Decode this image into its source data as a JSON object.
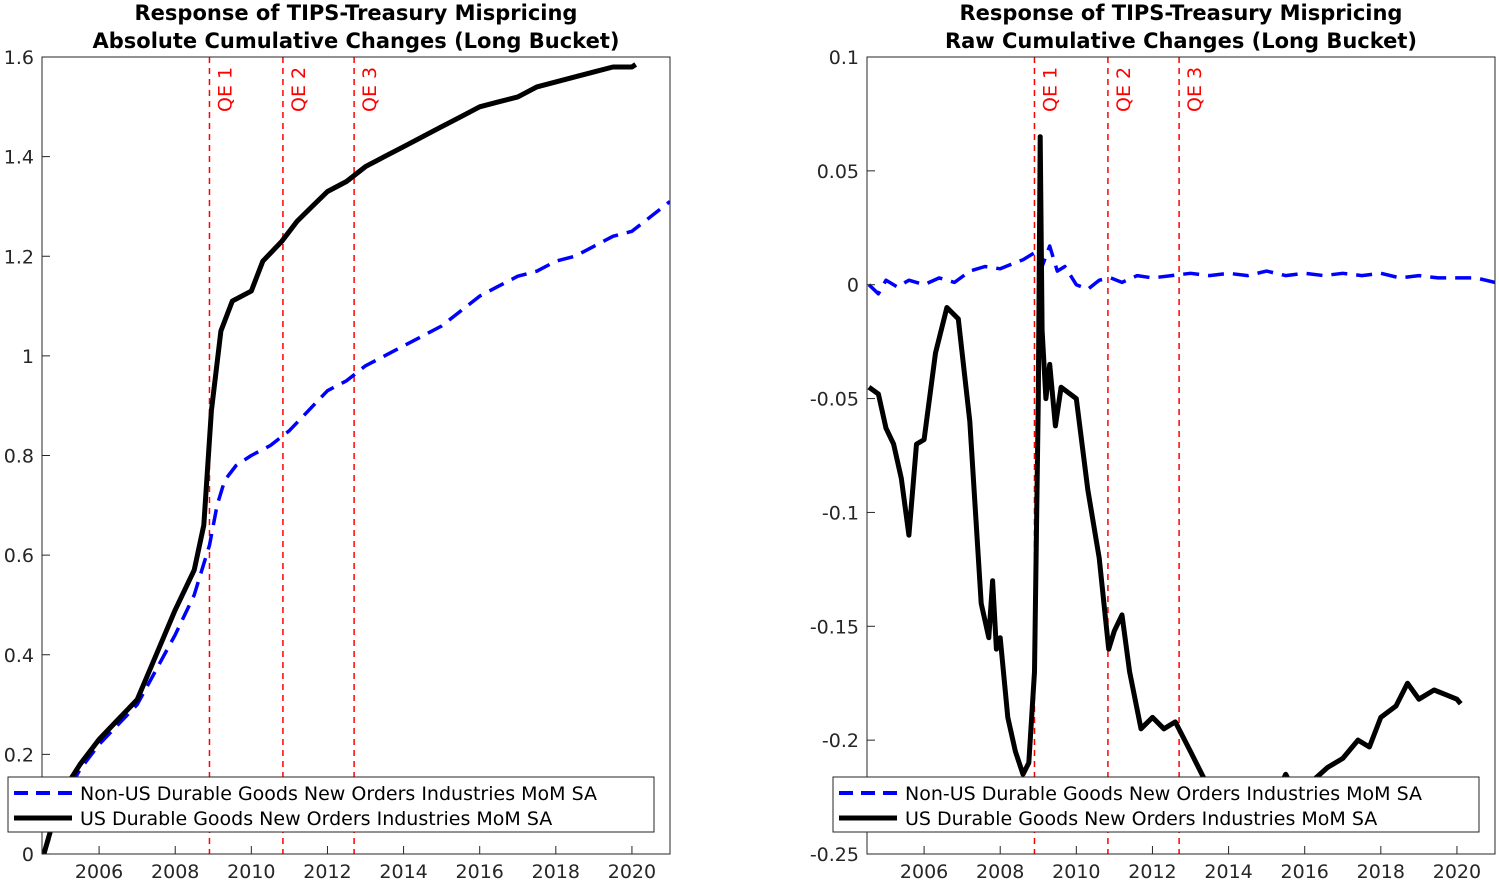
{
  "chart_data": [
    {
      "type": "line",
      "title": "Response of TIPS-Treasury Mispricing",
      "subtitle": "Absolute Cumulative Changes (Long Bucket)",
      "xlabel": "",
      "ylabel": "",
      "xlim": [
        2004.5,
        2021.0
      ],
      "ylim": [
        0,
        1.6
      ],
      "xticks": [
        2006,
        2008,
        2010,
        2012,
        2014,
        2016,
        2018,
        2020
      ],
      "yticks": [
        0,
        0.2,
        0.4,
        0.6,
        0.8,
        1,
        1.2,
        1.4,
        1.6
      ],
      "ytick_labels": [
        "0",
        "0.2",
        "0.4",
        "0.6",
        "0.8",
        "1",
        "1.2",
        "1.4",
        "1.6"
      ],
      "grid": false,
      "legend_position": "bottom",
      "vlines": [
        {
          "x": 2008.9,
          "label": "QE 1"
        },
        {
          "x": 2010.83,
          "label": "QE 2"
        },
        {
          "x": 2012.7,
          "label": "QE 3"
        }
      ],
      "series": [
        {
          "name": "Non-US Durable Goods New Orders Industries MoM SA",
          "color": "#0000ff",
          "style": "dashed",
          "x": [
            2004.55,
            2005.0,
            2005.5,
            2006.0,
            2006.5,
            2007.0,
            2007.5,
            2008.0,
            2008.5,
            2008.9,
            2009.1,
            2009.3,
            2009.6,
            2010.0,
            2010.5,
            2011.0,
            2011.5,
            2012.0,
            2012.5,
            2013.0,
            2013.5,
            2014.0,
            2014.5,
            2015.0,
            2015.5,
            2016.0,
            2016.5,
            2017.0,
            2017.5,
            2018.0,
            2018.5,
            2019.0,
            2019.5,
            2020.0,
            2020.5,
            2021.0
          ],
          "y": [
            0.0,
            0.1,
            0.17,
            0.22,
            0.26,
            0.3,
            0.37,
            0.44,
            0.52,
            0.62,
            0.7,
            0.75,
            0.78,
            0.8,
            0.82,
            0.85,
            0.89,
            0.93,
            0.95,
            0.98,
            1.0,
            1.02,
            1.04,
            1.06,
            1.09,
            1.12,
            1.14,
            1.16,
            1.17,
            1.19,
            1.2,
            1.22,
            1.24,
            1.25,
            1.28,
            1.31
          ]
        },
        {
          "name": "US Durable Goods New Orders Industries MoM SA",
          "color": "#000000",
          "style": "solid",
          "x": [
            2004.55,
            2005.0,
            2005.5,
            2006.0,
            2006.5,
            2007.0,
            2007.5,
            2008.0,
            2008.5,
            2008.75,
            2008.95,
            2009.2,
            2009.5,
            2010.0,
            2010.3,
            2010.8,
            2011.2,
            2011.6,
            2012.0,
            2012.5,
            2013.0,
            2013.5,
            2014.0,
            2014.5,
            2015.0,
            2015.5,
            2016.0,
            2016.5,
            2017.0,
            2017.5,
            2018.0,
            2018.5,
            2019.0,
            2019.5,
            2020.0,
            2020.1
          ],
          "y": [
            0.0,
            0.12,
            0.18,
            0.23,
            0.27,
            0.31,
            0.4,
            0.49,
            0.57,
            0.66,
            0.89,
            1.05,
            1.11,
            1.13,
            1.19,
            1.23,
            1.27,
            1.3,
            1.33,
            1.35,
            1.38,
            1.4,
            1.42,
            1.44,
            1.46,
            1.48,
            1.5,
            1.51,
            1.52,
            1.54,
            1.55,
            1.56,
            1.57,
            1.58,
            1.58,
            1.585
          ]
        }
      ]
    },
    {
      "type": "line",
      "title": "Response of TIPS-Treasury Mispricing",
      "subtitle": "Raw Cumulative Changes (Long Bucket)",
      "xlabel": "",
      "ylabel": "",
      "xlim": [
        2004.5,
        2021.0
      ],
      "ylim": [
        -0.25,
        0.1
      ],
      "xticks": [
        2006,
        2008,
        2010,
        2012,
        2014,
        2016,
        2018,
        2020
      ],
      "yticks": [
        -0.25,
        -0.2,
        -0.15,
        -0.1,
        -0.05,
        0,
        0.05,
        0.1
      ],
      "ytick_labels": [
        "-0.25",
        "-0.2",
        "-0.15",
        "-0.1",
        "-0.05",
        "0",
        "0.05",
        "0.1"
      ],
      "grid": false,
      "legend_position": "bottom",
      "vlines": [
        {
          "x": 2008.9,
          "label": "QE 1"
        },
        {
          "x": 2010.83,
          "label": "QE 2"
        },
        {
          "x": 2012.7,
          "label": "QE 3"
        }
      ],
      "series": [
        {
          "name": "Non-US Durable Goods New Orders Industries MoM SA",
          "color": "#0000ff",
          "style": "dashed",
          "x": [
            2004.55,
            2004.8,
            2005.0,
            2005.3,
            2005.6,
            2006.0,
            2006.4,
            2006.8,
            2007.2,
            2007.6,
            2008.0,
            2008.3,
            2008.6,
            2008.9,
            2009.1,
            2009.3,
            2009.5,
            2009.7,
            2010.0,
            2010.3,
            2010.6,
            2010.9,
            2011.2,
            2011.6,
            2012.0,
            2012.5,
            2013.0,
            2013.5,
            2014.0,
            2014.5,
            2015.0,
            2015.5,
            2016.0,
            2016.5,
            2017.0,
            2017.5,
            2018.0,
            2018.5,
            2019.0,
            2019.5,
            2020.0,
            2020.5,
            2021.0
          ],
          "y": [
            0.0,
            -0.004,
            0.002,
            -0.001,
            0.002,
            0.0,
            0.003,
            0.001,
            0.006,
            0.008,
            0.007,
            0.009,
            0.011,
            0.014,
            0.008,
            0.017,
            0.006,
            0.008,
            0.0,
            -0.002,
            0.002,
            0.003,
            0.001,
            0.004,
            0.003,
            0.004,
            0.005,
            0.004,
            0.005,
            0.004,
            0.006,
            0.004,
            0.005,
            0.004,
            0.005,
            0.004,
            0.005,
            0.003,
            0.004,
            0.003,
            0.003,
            0.003,
            0.001
          ]
        },
        {
          "name": "US Durable Goods New Orders Industries MoM SA",
          "color": "#000000",
          "style": "solid",
          "x": [
            2004.55,
            2004.8,
            2005.0,
            2005.2,
            2005.4,
            2005.6,
            2005.8,
            2006.0,
            2006.3,
            2006.6,
            2006.9,
            2007.2,
            2007.5,
            2007.7,
            2007.8,
            2007.9,
            2008.0,
            2008.2,
            2008.4,
            2008.6,
            2008.75,
            2008.9,
            2009.0,
            2009.05,
            2009.1,
            2009.2,
            2009.3,
            2009.45,
            2009.6,
            2010.0,
            2010.3,
            2010.6,
            2010.85,
            2011.0,
            2011.2,
            2011.4,
            2011.7,
            2012.0,
            2012.3,
            2012.6,
            2013.0,
            2013.3,
            2013.6,
            2014.0,
            2014.4,
            2014.8,
            2015.2,
            2015.5,
            2015.8,
            2016.2,
            2016.6,
            2017.0,
            2017.4,
            2017.7,
            2018.0,
            2018.4,
            2018.7,
            2019.0,
            2019.4,
            2019.7,
            2020.0,
            2020.1
          ],
          "y": [
            -0.045,
            -0.048,
            -0.063,
            -0.07,
            -0.085,
            -0.11,
            -0.07,
            -0.068,
            -0.03,
            -0.01,
            -0.015,
            -0.06,
            -0.14,
            -0.155,
            -0.13,
            -0.16,
            -0.155,
            -0.19,
            -0.205,
            -0.215,
            -0.21,
            -0.17,
            -0.05,
            0.065,
            -0.02,
            -0.05,
            -0.035,
            -0.062,
            -0.045,
            -0.05,
            -0.09,
            -0.12,
            -0.16,
            -0.152,
            -0.145,
            -0.17,
            -0.195,
            -0.19,
            -0.195,
            -0.192,
            -0.205,
            -0.215,
            -0.225,
            -0.22,
            -0.228,
            -0.222,
            -0.226,
            -0.215,
            -0.225,
            -0.218,
            -0.212,
            -0.208,
            -0.2,
            -0.203,
            -0.19,
            -0.185,
            -0.175,
            -0.182,
            -0.178,
            -0.18,
            -0.182,
            -0.184
          ]
        }
      ]
    }
  ]
}
